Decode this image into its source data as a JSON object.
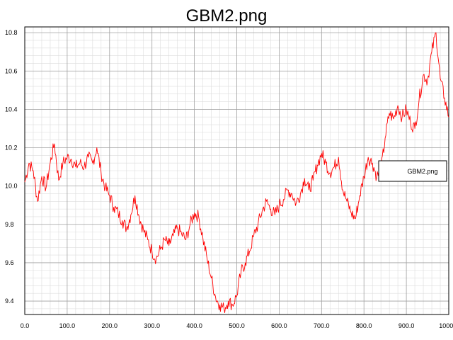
{
  "chart_data": {
    "type": "line",
    "title": "GBM2.png",
    "xlabel": "",
    "ylabel": "",
    "xlim": [
      0,
      1000
    ],
    "ylim": [
      9.33,
      10.83
    ],
    "grid": true,
    "legend_position": "right",
    "x_ticks": [
      "0.0",
      "100.0",
      "200.0",
      "300.0",
      "400.0",
      "500.0",
      "600.0",
      "700.0",
      "800.0",
      "900.0",
      "1000.0"
    ],
    "y_ticks": [
      "9.4",
      "9.6",
      "9.8",
      "10.0",
      "10.2",
      "10.4",
      "10.6",
      "10.8"
    ],
    "series": [
      {
        "name": "GBM2.png",
        "color": "#ff0000",
        "x": [
          0,
          10,
          20,
          30,
          40,
          50,
          60,
          70,
          80,
          90,
          100,
          110,
          120,
          130,
          140,
          150,
          160,
          170,
          180,
          190,
          200,
          210,
          220,
          230,
          240,
          250,
          260,
          270,
          280,
          290,
          300,
          310,
          320,
          330,
          340,
          350,
          360,
          370,
          380,
          390,
          400,
          410,
          420,
          430,
          440,
          450,
          460,
          470,
          480,
          490,
          500,
          510,
          520,
          530,
          540,
          550,
          560,
          570,
          580,
          590,
          600,
          610,
          620,
          630,
          640,
          650,
          660,
          670,
          680,
          690,
          700,
          710,
          720,
          730,
          740,
          750,
          760,
          770,
          780,
          790,
          800,
          810,
          820,
          830,
          840,
          850,
          860,
          870,
          880,
          890,
          900,
          910,
          920,
          930,
          940,
          950,
          960,
          970,
          980,
          990,
          1000
        ],
        "values": [
          10.02,
          10.12,
          10.08,
          9.92,
          10.05,
          9.99,
          10.12,
          10.22,
          10.03,
          10.12,
          10.15,
          10.14,
          10.1,
          10.12,
          10.1,
          10.15,
          10.12,
          10.2,
          10.07,
          9.99,
          9.95,
          9.89,
          9.86,
          9.82,
          9.78,
          9.85,
          9.95,
          9.84,
          9.77,
          9.72,
          9.66,
          9.62,
          9.67,
          9.72,
          9.69,
          9.74,
          9.78,
          9.75,
          9.72,
          9.8,
          9.86,
          9.84,
          9.73,
          9.62,
          9.52,
          9.42,
          9.38,
          9.36,
          9.4,
          9.38,
          9.43,
          9.55,
          9.6,
          9.66,
          9.74,
          9.8,
          9.87,
          9.92,
          9.88,
          9.85,
          9.9,
          9.93,
          9.98,
          9.96,
          9.91,
          9.96,
          10.04,
          9.98,
          10.03,
          10.11,
          10.17,
          10.12,
          10.07,
          10.1,
          10.15,
          9.98,
          9.92,
          9.86,
          9.83,
          9.95,
          10.05,
          10.15,
          10.12,
          10.05,
          10.08,
          10.25,
          10.38,
          10.35,
          10.42,
          10.36,
          10.4,
          10.33,
          10.3,
          10.45,
          10.58,
          10.55,
          10.7,
          10.8,
          10.56,
          10.46,
          10.36
        ]
      }
    ]
  }
}
